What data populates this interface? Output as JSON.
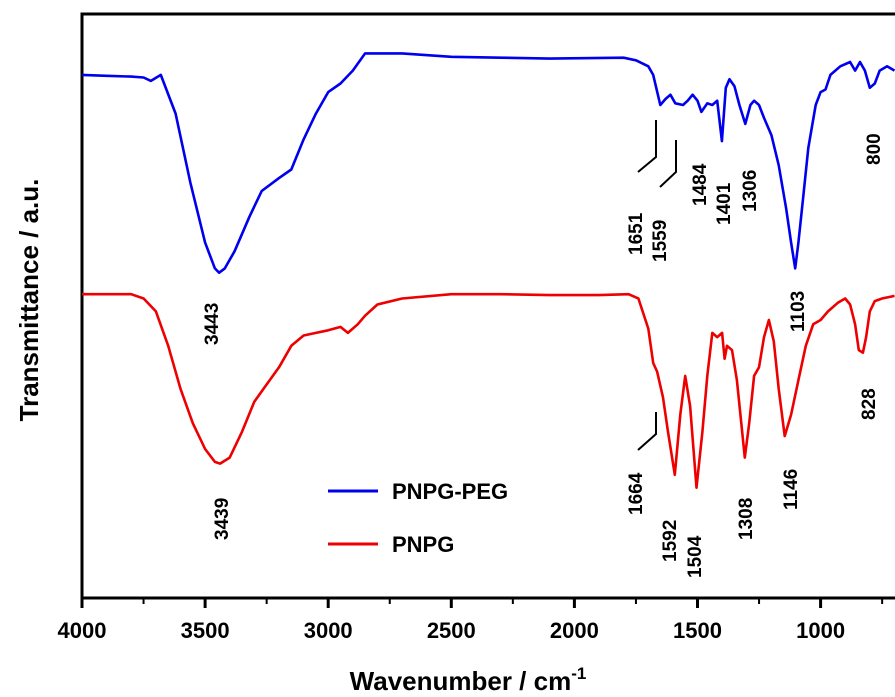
{
  "chart_data": {
    "type": "line",
    "title": "",
    "xlabel": "Wavenumber / cm",
    "xlabel_superscript": "-1",
    "ylabel": "Transmittance / a.u.",
    "xlim": [
      4000,
      700
    ],
    "x_reversed": true,
    "xticks": [
      4000,
      3500,
      3000,
      2500,
      2000,
      1500,
      1000
    ],
    "y_units": "arbitrary, offset for clarity",
    "grid": false,
    "legend": {
      "placement": "bottom-center"
    },
    "series": [
      {
        "name": "PNPG-PEG",
        "color": "#0000ee",
        "y_offset": 0,
        "points": [
          [
            4000,
            0.15
          ],
          [
            3900,
            0.16
          ],
          [
            3800,
            0.17
          ],
          [
            3750,
            0.18
          ],
          [
            3720,
            0.22
          ],
          [
            3680,
            0.15
          ],
          [
            3620,
            0.6
          ],
          [
            3560,
            1.4
          ],
          [
            3500,
            2.1
          ],
          [
            3460,
            2.4
          ],
          [
            3443,
            2.45
          ],
          [
            3420,
            2.4
          ],
          [
            3380,
            2.2
          ],
          [
            3320,
            1.8
          ],
          [
            3270,
            1.5
          ],
          [
            3200,
            1.35
          ],
          [
            3150,
            1.25
          ],
          [
            3100,
            0.9
          ],
          [
            3050,
            0.6
          ],
          [
            3000,
            0.35
          ],
          [
            2950,
            0.25
          ],
          [
            2900,
            0.1
          ],
          [
            2850,
            -0.1
          ],
          [
            2700,
            -0.1
          ],
          [
            2500,
            -0.06
          ],
          [
            2300,
            -0.05
          ],
          [
            2100,
            -0.04
          ],
          [
            1800,
            -0.05
          ],
          [
            1750,
            -0.02
          ],
          [
            1700,
            0.05
          ],
          [
            1680,
            0.15
          ],
          [
            1651,
            0.5
          ],
          [
            1630,
            0.43
          ],
          [
            1610,
            0.38
          ],
          [
            1590,
            0.48
          ],
          [
            1559,
            0.5
          ],
          [
            1540,
            0.45
          ],
          [
            1520,
            0.38
          ],
          [
            1500,
            0.45
          ],
          [
            1484,
            0.58
          ],
          [
            1460,
            0.48
          ],
          [
            1440,
            0.5
          ],
          [
            1420,
            0.45
          ],
          [
            1401,
            0.92
          ],
          [
            1385,
            0.3
          ],
          [
            1370,
            0.2
          ],
          [
            1350,
            0.28
          ],
          [
            1330,
            0.5
          ],
          [
            1306,
            0.72
          ],
          [
            1285,
            0.5
          ],
          [
            1270,
            0.45
          ],
          [
            1250,
            0.5
          ],
          [
            1230,
            0.65
          ],
          [
            1200,
            0.85
          ],
          [
            1170,
            1.2
          ],
          [
            1140,
            1.7
          ],
          [
            1120,
            2.1
          ],
          [
            1103,
            2.4
          ],
          [
            1090,
            2.1
          ],
          [
            1070,
            1.55
          ],
          [
            1050,
            1.0
          ],
          [
            1020,
            0.5
          ],
          [
            1000,
            0.35
          ],
          [
            980,
            0.32
          ],
          [
            960,
            0.15
          ],
          [
            920,
            0.05
          ],
          [
            880,
            0.0
          ],
          [
            860,
            0.1
          ],
          [
            840,
            0.0
          ],
          [
            820,
            0.1
          ],
          [
            800,
            0.3
          ],
          [
            780,
            0.25
          ],
          [
            760,
            0.1
          ],
          [
            730,
            0.05
          ],
          [
            700,
            0.1
          ]
        ]
      },
      {
        "name": "PNPG",
        "color": "#ee0000",
        "y_offset": 2.7,
        "points": [
          [
            4000,
            0.0
          ],
          [
            3800,
            0.0
          ],
          [
            3750,
            0.05
          ],
          [
            3700,
            0.2
          ],
          [
            3650,
            0.6
          ],
          [
            3600,
            1.1
          ],
          [
            3550,
            1.5
          ],
          [
            3500,
            1.8
          ],
          [
            3460,
            1.95
          ],
          [
            3439,
            1.97
          ],
          [
            3400,
            1.9
          ],
          [
            3350,
            1.6
          ],
          [
            3300,
            1.25
          ],
          [
            3250,
            1.05
          ],
          [
            3200,
            0.85
          ],
          [
            3150,
            0.6
          ],
          [
            3100,
            0.48
          ],
          [
            3050,
            0.45
          ],
          [
            3000,
            0.42
          ],
          [
            2950,
            0.38
          ],
          [
            2920,
            0.45
          ],
          [
            2880,
            0.35
          ],
          [
            2850,
            0.25
          ],
          [
            2800,
            0.12
          ],
          [
            2700,
            0.05
          ],
          [
            2500,
            0.0
          ],
          [
            2300,
            0.0
          ],
          [
            2100,
            0.01
          ],
          [
            1900,
            0.01
          ],
          [
            1780,
            0.0
          ],
          [
            1740,
            0.05
          ],
          [
            1700,
            0.4
          ],
          [
            1680,
            0.8
          ],
          [
            1664,
            0.9
          ],
          [
            1640,
            1.2
          ],
          [
            1620,
            1.6
          ],
          [
            1592,
            2.1
          ],
          [
            1570,
            1.4
          ],
          [
            1550,
            0.95
          ],
          [
            1530,
            1.3
          ],
          [
            1504,
            2.25
          ],
          [
            1480,
            1.6
          ],
          [
            1460,
            0.95
          ],
          [
            1440,
            0.45
          ],
          [
            1420,
            0.5
          ],
          [
            1400,
            0.45
          ],
          [
            1390,
            0.75
          ],
          [
            1380,
            0.6
          ],
          [
            1360,
            0.65
          ],
          [
            1340,
            1.0
          ],
          [
            1308,
            1.9
          ],
          [
            1290,
            1.5
          ],
          [
            1270,
            0.95
          ],
          [
            1250,
            0.85
          ],
          [
            1230,
            0.5
          ],
          [
            1210,
            0.3
          ],
          [
            1190,
            0.55
          ],
          [
            1170,
            1.1
          ],
          [
            1146,
            1.65
          ],
          [
            1120,
            1.4
          ],
          [
            1090,
            1.0
          ],
          [
            1060,
            0.6
          ],
          [
            1030,
            0.35
          ],
          [
            1000,
            0.3
          ],
          [
            970,
            0.2
          ],
          [
            930,
            0.1
          ],
          [
            900,
            0.05
          ],
          [
            880,
            0.12
          ],
          [
            860,
            0.35
          ],
          [
            845,
            0.65
          ],
          [
            828,
            0.68
          ],
          [
            815,
            0.5
          ],
          [
            800,
            0.2
          ],
          [
            780,
            0.08
          ],
          [
            750,
            0.05
          ],
          [
            700,
            0.02
          ]
        ]
      }
    ],
    "annotations": [
      {
        "text": "3443",
        "series": "PNPG-PEG",
        "x": 3443
      },
      {
        "text": "1651",
        "series": "PNPG-PEG",
        "x": 1651
      },
      {
        "text": "1559",
        "series": "PNPG-PEG",
        "x": 1559
      },
      {
        "text": "1484",
        "series": "PNPG-PEG",
        "x": 1484
      },
      {
        "text": "1401",
        "series": "PNPG-PEG",
        "x": 1401
      },
      {
        "text": "1306",
        "series": "PNPG-PEG",
        "x": 1306
      },
      {
        "text": "1103",
        "series": "PNPG-PEG",
        "x": 1103
      },
      {
        "text": "800",
        "series": "PNPG-PEG",
        "x": 800
      },
      {
        "text": "3439",
        "series": "PNPG",
        "x": 3439
      },
      {
        "text": "1664",
        "series": "PNPG",
        "x": 1664
      },
      {
        "text": "1592",
        "series": "PNPG",
        "x": 1592
      },
      {
        "text": "1504",
        "series": "PNPG",
        "x": 1504
      },
      {
        "text": "1308",
        "series": "PNPG",
        "x": 1308
      },
      {
        "text": "1146",
        "series": "PNPG",
        "x": 1146
      },
      {
        "text": "828",
        "series": "PNPG",
        "x": 828
      }
    ]
  }
}
